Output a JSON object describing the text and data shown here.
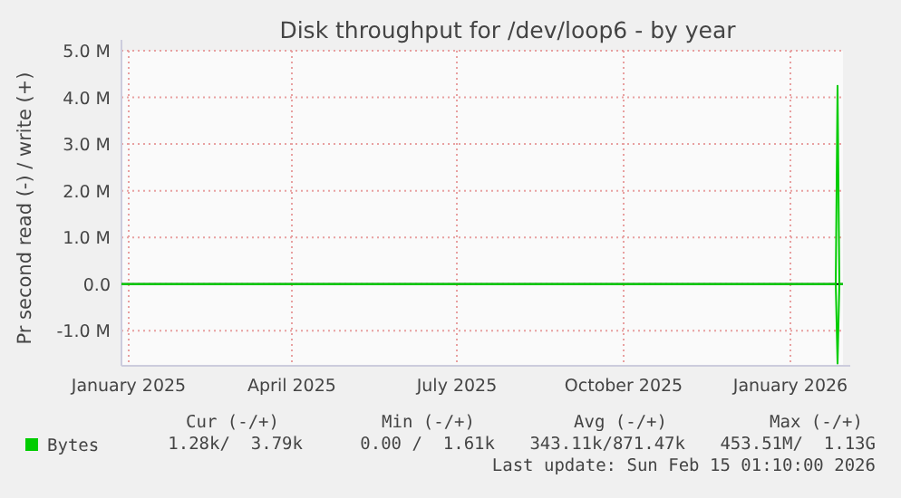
{
  "chart_data": {
    "type": "line",
    "title": "Disk throughput for /dev/loop6 - by year",
    "ylabel": "Pr second read (-) / write (+)",
    "xlim": [
      "2024-12-28",
      "2026-01-30"
    ],
    "xticks": [
      {
        "value": "2025-01-01",
        "label": "January 2025"
      },
      {
        "value": "2025-04-01",
        "label": "April 2025"
      },
      {
        "value": "2025-07-01",
        "label": "July 2025"
      },
      {
        "value": "2025-10-01",
        "label": "October 2025"
      },
      {
        "value": "2026-01-01",
        "label": "January 2026"
      }
    ],
    "ylim": [
      -1750000,
      5000000
    ],
    "yticks": [
      {
        "value": -1000000,
        "label": "-1.0 M"
      },
      {
        "value": 0,
        "label": "0.0"
      },
      {
        "value": 1000000,
        "label": "1.0 M"
      },
      {
        "value": 2000000,
        "label": "2.0 M"
      },
      {
        "value": 3000000,
        "label": "3.0 M"
      },
      {
        "value": 4000000,
        "label": "4.0 M"
      },
      {
        "value": 5000000,
        "label": "5.0 M"
      }
    ],
    "grid": true,
    "legend": "bottom left",
    "marker": "none",
    "line_style": "solid",
    "series": [
      {
        "name": "Bytes",
        "color": "#00cc00",
        "x": [
          "2024-12-28",
          "2026-01-26",
          "2026-01-27",
          "2026-01-28",
          "2026-01-30"
        ],
        "values": [
          0,
          0,
          4250000,
          0,
          0
        ]
      },
      {
        "color": "#00cc00",
        "x": [
          "2024-12-28",
          "2026-01-26",
          "2026-01-27",
          "2026-01-28",
          "2026-01-30"
        ],
        "values": [
          0,
          0,
          -1700000,
          0,
          0
        ]
      }
    ],
    "ref_lines": [
      {
        "axis": "y",
        "value": 0,
        "color": "#000000"
      }
    ],
    "annotations": [
      "Cur (-/+)",
      "Min (-/+)",
      "Avg (-/+)",
      "Max (-/+)",
      "1.28k/  3.79k",
      "0.00 /  1.61k",
      "343.11k/871.47k",
      "453.51M/  1.13G",
      "Last update: Sun Feb 15 01:10:00 2026"
    ]
  }
}
